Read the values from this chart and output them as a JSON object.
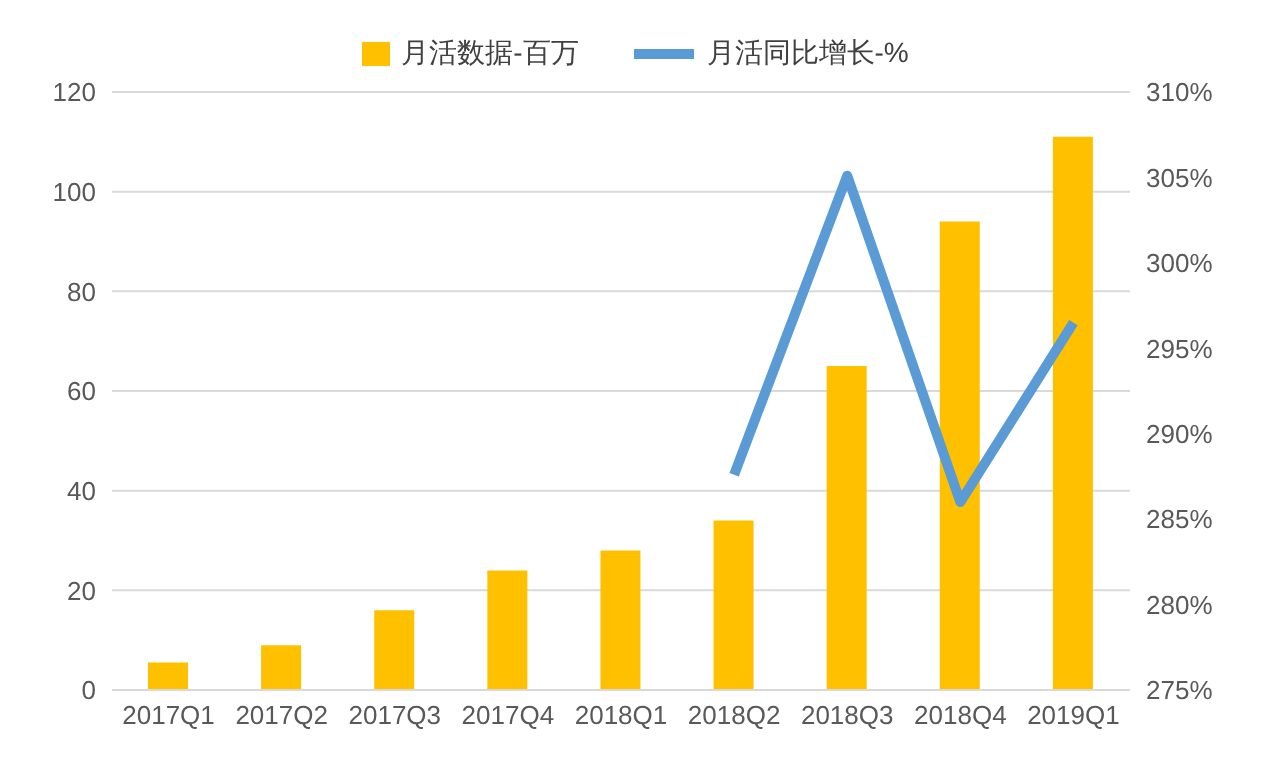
{
  "chart_data": {
    "type": "bar",
    "categories": [
      "2017Q1",
      "2017Q2",
      "2017Q3",
      "2017Q4",
      "2018Q1",
      "2018Q2",
      "2018Q3",
      "2018Q4",
      "2019Q1"
    ],
    "series": [
      {
        "name": "月活数据-百万",
        "color": "#ffc000",
        "values": [
          5.5,
          9,
          16,
          24,
          28,
          34,
          65,
          94,
          111
        ]
      },
      {
        "name": "月活同比增长-%",
        "type": "line",
        "axis": "y2",
        "color": "#5b9bd5",
        "values": [
          null,
          null,
          null,
          null,
          null,
          287.6,
          305.1,
          286,
          296.5
        ]
      }
    ],
    "ylim": [
      0,
      120
    ],
    "yticks": [
      0,
      20,
      40,
      60,
      80,
      100,
      120
    ],
    "y2lim": [
      275,
      310
    ],
    "y2ticks": [
      {
        "value": 275,
        "label": "275%"
      },
      {
        "value": 280,
        "label": "280%"
      },
      {
        "value": 285,
        "label": "285%"
      },
      {
        "value": 290,
        "label": "290%"
      },
      {
        "value": 295,
        "label": "295%"
      },
      {
        "value": 300,
        "label": "300%"
      },
      {
        "value": 305,
        "label": "305%"
      },
      {
        "value": 310,
        "label": "310%"
      }
    ],
    "grid": "y",
    "legend": "top",
    "marker": "none"
  }
}
